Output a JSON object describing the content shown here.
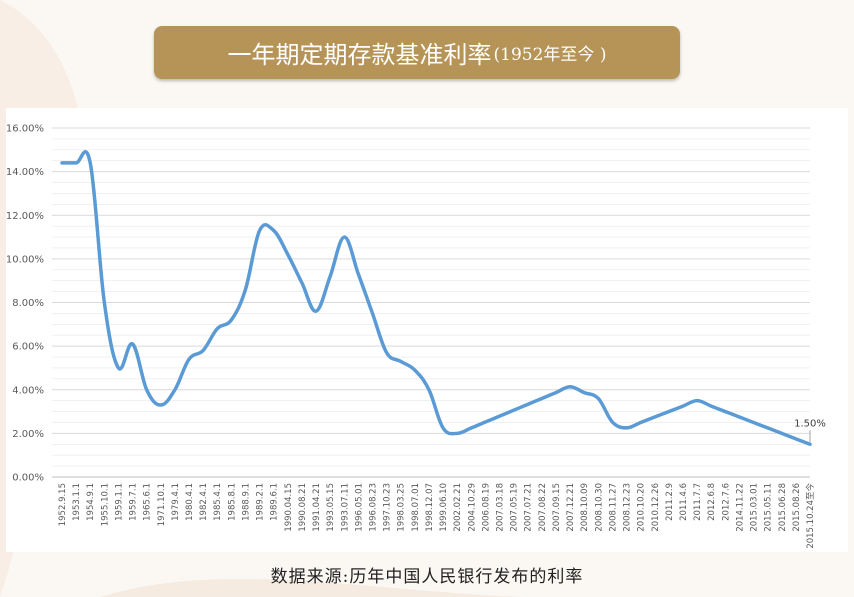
{
  "title": {
    "main": "一年期定期存款基准利率",
    "sub": "(1952年至今 )"
  },
  "source_note": "数据来源:历年中国人民银行发布的利率",
  "colors": {
    "line": "#5b9bd5",
    "title_bg": "#b69457",
    "grid": "#d9d9d9",
    "axis_text": "#595959"
  },
  "chart_data": {
    "type": "line",
    "title": "一年期定期存款基准利率(1952年至今 )",
    "xlabel": "",
    "ylabel": "",
    "ylim": [
      0,
      16
    ],
    "y_ticks": [
      "0.00%",
      "2.00%",
      "4.00%",
      "6.00%",
      "8.00%",
      "10.00%",
      "12.00%",
      "14.00%",
      "16.00%"
    ],
    "grid": "horizontal",
    "categories": [
      "1952.9.15",
      "1953.1.1",
      "1954.9.1",
      "1955.10.1",
      "1959.1.1",
      "1959.7.1",
      "1965.6.1",
      "1971.10.1",
      "1979.4.1",
      "1980.4.1",
      "1982.4.1",
      "1985.4.1",
      "1985.8.1",
      "1988.9.1",
      "1989.2.1",
      "1989.6.1",
      "1990.04.15",
      "1990.08.21",
      "1991.04.21",
      "1993.05.15",
      "1993.07.11",
      "1996.05.01",
      "1996.08.23",
      "1997.10.23",
      "1998.03.25",
      "1998.07.01",
      "1998.12.07",
      "1999.06.10",
      "2002.02.21",
      "2004.10.29",
      "2006.08.19",
      "2007.03.18",
      "2007.05.19",
      "2007.07.21",
      "2007.08.22",
      "2007.09.15",
      "2007.12.21",
      "2008.10.09",
      "2008.10.30",
      "2008.11.27",
      "2008.12.23",
      "2010.10.20",
      "2010.12.26",
      "2011.2.9",
      "2011.4.6",
      "2011.7.7",
      "2012.6.8",
      "2012.7.6",
      "2014.11.22",
      "2015.03.01",
      "2015.05.11",
      "2015.06.28",
      "2015.08.26",
      "2015.10.24至今"
    ],
    "series": [
      {
        "values": [
          14.4,
          14.4,
          14.4,
          8.0,
          5.0,
          6.1,
          4.0,
          3.3,
          4.0,
          5.4,
          5.8,
          6.8,
          7.2,
          8.6,
          11.3,
          11.3,
          10.2,
          8.9,
          7.6,
          9.2,
          11.0,
          9.3,
          7.5,
          5.7,
          5.3,
          4.9,
          4.0,
          2.25,
          2.0,
          2.25,
          2.52,
          2.79,
          3.06,
          3.33,
          3.6,
          3.87,
          4.14,
          3.87,
          3.6,
          2.52,
          2.25,
          2.5,
          2.75,
          3.0,
          3.25,
          3.5,
          3.25,
          3.0,
          2.75,
          2.5,
          2.25,
          2.0,
          1.75,
          1.5
        ]
      }
    ],
    "data_labels": [
      {
        "category": "2015.10.24至今",
        "text": "1.50%"
      }
    ]
  }
}
